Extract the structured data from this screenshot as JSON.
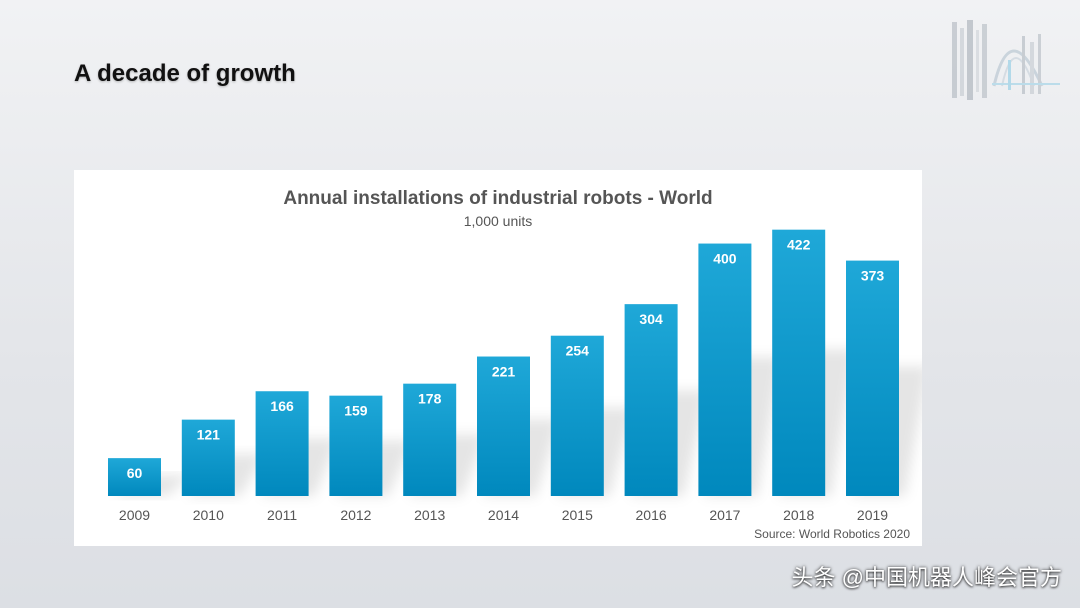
{
  "slide": {
    "title": "A decade of growth",
    "watermark": "头条 @中国机器人峰会官方"
  },
  "colors": {
    "bar_top": "#1fa8d8",
    "bar_bottom": "#0088bd",
    "axis_text": "#555555",
    "title_text": "#555555"
  },
  "chart_data": {
    "type": "bar",
    "title": "Annual installations of industrial robots - World",
    "subtitle": "1,000 units",
    "categories": [
      "2009",
      "2010",
      "2011",
      "2012",
      "2013",
      "2014",
      "2015",
      "2016",
      "2017",
      "2018",
      "2019"
    ],
    "values": [
      60,
      121,
      166,
      159,
      178,
      221,
      254,
      304,
      400,
      422,
      373
    ],
    "ylim": [
      0,
      450
    ],
    "source": "Source: World Robotics 2020",
    "grid": false,
    "legend": "none",
    "data_labels": "inside-top"
  }
}
